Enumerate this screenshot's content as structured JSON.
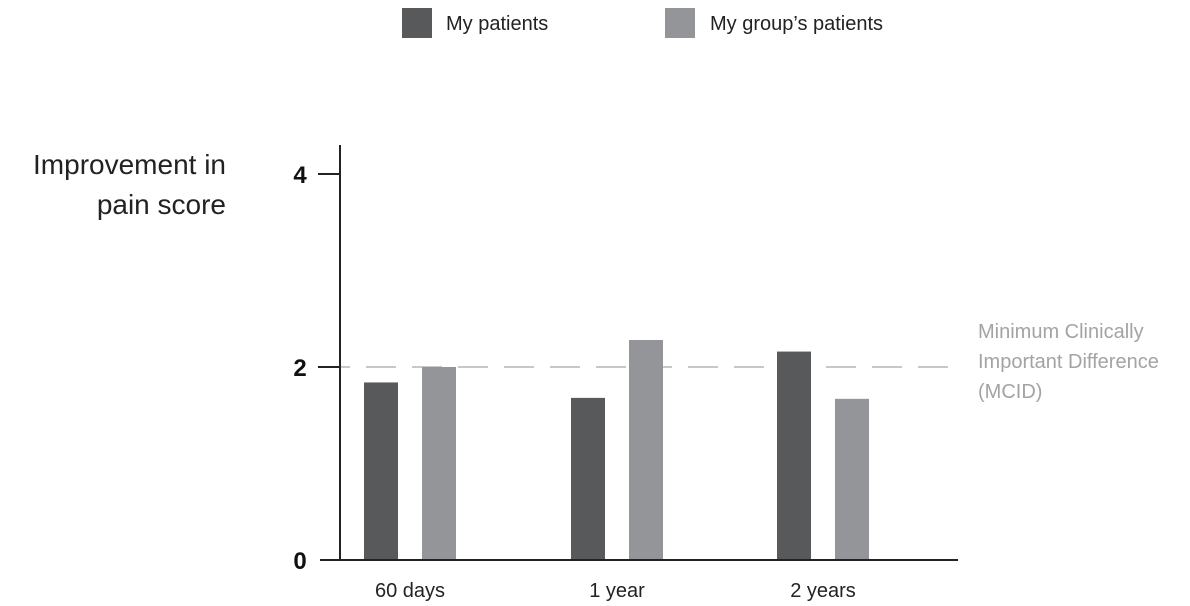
{
  "colors": {
    "my_patients": "#58595b",
    "group_patients": "#939598",
    "reference_line": "#c8c8c8",
    "reference_text": "#a3a3a3",
    "axis": "#222222"
  },
  "legend": {
    "items": [
      {
        "label": "My patients",
        "color": "#58595b"
      },
      {
        "label": "My group’s patients",
        "color": "#939598"
      }
    ]
  },
  "chart_data": {
    "type": "bar",
    "title": "",
    "ylabel_lines": [
      "Improvement in",
      "pain score"
    ],
    "xlabel": "",
    "categories": [
      "60 days",
      "1 year",
      "2 years"
    ],
    "series": [
      {
        "name": "My patients",
        "values": [
          1.84,
          1.68,
          2.16
        ]
      },
      {
        "name": "My group’s patients",
        "values": [
          2.0,
          2.28,
          1.67
        ]
      }
    ],
    "ylim": [
      0,
      4.3
    ],
    "yticks": [
      0,
      2,
      4
    ],
    "ytick_labels": [
      "0",
      "2",
      "4"
    ],
    "reference_line": {
      "y": 2,
      "style": "dashed",
      "label_lines": [
        "Minimum Clinically",
        "Important Difference",
        "(MCID)"
      ]
    },
    "grid": false,
    "legend_position": "top-center"
  }
}
